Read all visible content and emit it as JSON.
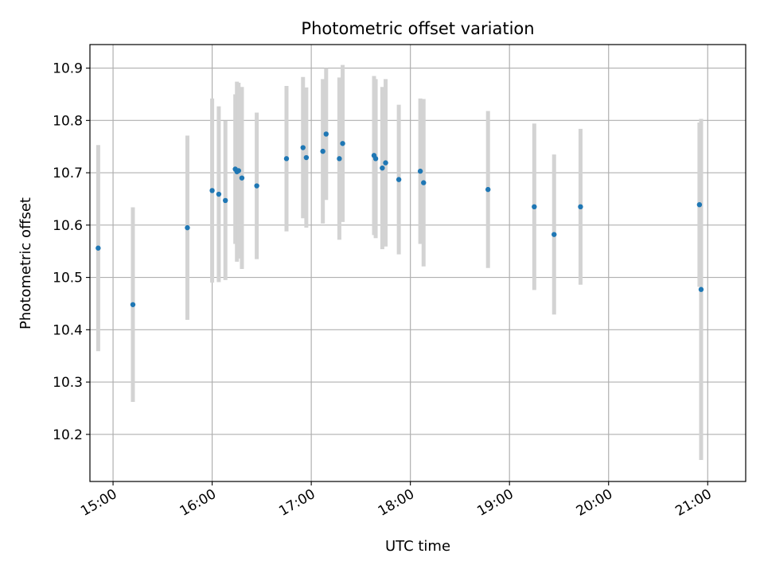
{
  "chart_data": {
    "type": "scatter",
    "title": "Photometric offset variation",
    "xlabel": "UTC time",
    "ylabel": "Photometric offset",
    "x_axis": "time",
    "xlim_minutes_of_day": [
      886,
      1283
    ],
    "ylim": [
      10.11,
      10.945
    ],
    "xticks": [
      {
        "label": "15:00",
        "minutes": 900
      },
      {
        "label": "16:00",
        "minutes": 960
      },
      {
        "label": "17:00",
        "minutes": 1020
      },
      {
        "label": "18:00",
        "minutes": 1080
      },
      {
        "label": "19:00",
        "minutes": 1140
      },
      {
        "label": "20:00",
        "minutes": 1200
      },
      {
        "label": "21:00",
        "minutes": 1260
      }
    ],
    "yticks": [
      10.2,
      10.3,
      10.4,
      10.5,
      10.6,
      10.7,
      10.8,
      10.9
    ],
    "grid": true,
    "point_color": "#1f77b4",
    "errorbar_color": "#d3d3d3",
    "series": [
      {
        "points": [
          {
            "t": "14:51",
            "y": 10.556,
            "err": 0.197
          },
          {
            "t": "15:12",
            "y": 10.448,
            "err": 0.186
          },
          {
            "t": "15:45",
            "y": 10.595,
            "err": 0.176
          },
          {
            "t": "16:00",
            "y": 10.666,
            "err": 0.176
          },
          {
            "t": "16:04",
            "y": 10.659,
            "err": 0.168
          },
          {
            "t": "16:08",
            "y": 10.647,
            "err": 0.152
          },
          {
            "t": "16:14",
            "y": 10.707,
            "err": 0.143
          },
          {
            "t": "16:15",
            "y": 10.702,
            "err": 0.172
          },
          {
            "t": "16:16",
            "y": 10.704,
            "err": 0.168
          },
          {
            "t": "16:18",
            "y": 10.69,
            "err": 0.174
          },
          {
            "t": "16:27",
            "y": 10.675,
            "err": 0.14
          },
          {
            "t": "16:45",
            "y": 10.727,
            "err": 0.139
          },
          {
            "t": "16:55",
            "y": 10.748,
            "err": 0.135
          },
          {
            "t": "16:57",
            "y": 10.729,
            "err": 0.134
          },
          {
            "t": "17:07",
            "y": 10.741,
            "err": 0.138
          },
          {
            "t": "17:09",
            "y": 10.774,
            "err": 0.126
          },
          {
            "t": "17:17",
            "y": 10.727,
            "err": 0.155
          },
          {
            "t": "17:19",
            "y": 10.756,
            "err": 0.15
          },
          {
            "t": "17:38",
            "y": 10.733,
            "err": 0.152
          },
          {
            "t": "17:39",
            "y": 10.727,
            "err": 0.152
          },
          {
            "t": "17:43",
            "y": 10.709,
            "err": 0.155
          },
          {
            "t": "17:45",
            "y": 10.719,
            "err": 0.16
          },
          {
            "t": "17:53",
            "y": 10.687,
            "err": 0.143
          },
          {
            "t": "18:06",
            "y": 10.703,
            "err": 0.139
          },
          {
            "t": "18:08",
            "y": 10.681,
            "err": 0.16
          },
          {
            "t": "18:47",
            "y": 10.668,
            "err": 0.15
          },
          {
            "t": "19:15",
            "y": 10.635,
            "err": 0.159
          },
          {
            "t": "19:27",
            "y": 10.582,
            "err": 0.153
          },
          {
            "t": "19:43",
            "y": 10.635,
            "err": 0.149
          },
          {
            "t": "20:55",
            "y": 10.639,
            "err": 0.157
          },
          {
            "t": "20:56",
            "y": 10.477,
            "err": 0.326
          }
        ]
      }
    ]
  }
}
